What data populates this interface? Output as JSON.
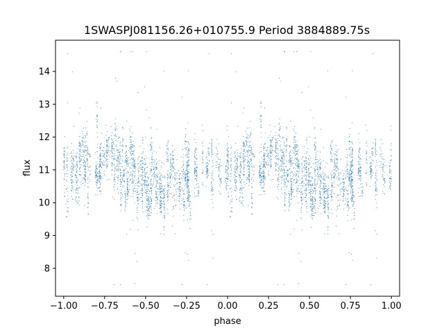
{
  "chart_data": {
    "type": "scatter",
    "title": "1SWASPJ081156.26+010755.9 Period 3884889.75s",
    "xlabel": "phase",
    "ylabel": "flux",
    "xlim": [
      -1.05,
      1.05
    ],
    "ylim": [
      7.15,
      14.95
    ],
    "xticks": [
      -1.0,
      -0.75,
      -0.5,
      -0.25,
      0.0,
      0.25,
      0.5,
      0.75,
      1.0
    ],
    "xtick_labels": [
      "−1.00",
      "−0.75",
      "−0.50",
      "−0.25",
      "0.00",
      "0.25",
      "0.50",
      "0.75",
      "1.00"
    ],
    "yticks": [
      8,
      9,
      10,
      11,
      12,
      13,
      14
    ],
    "ytick_labels": [
      "8",
      "9",
      "10",
      "11",
      "12",
      "13",
      "14"
    ],
    "grid": false,
    "legend": "none",
    "series_color": "#1f77b4",
    "phase_range": [
      -1.0,
      1.0
    ],
    "flux_median": 11.0,
    "flux_spread_typical": [
      10.0,
      12.3
    ],
    "flux_extreme": [
      7.5,
      14.6
    ]
  }
}
